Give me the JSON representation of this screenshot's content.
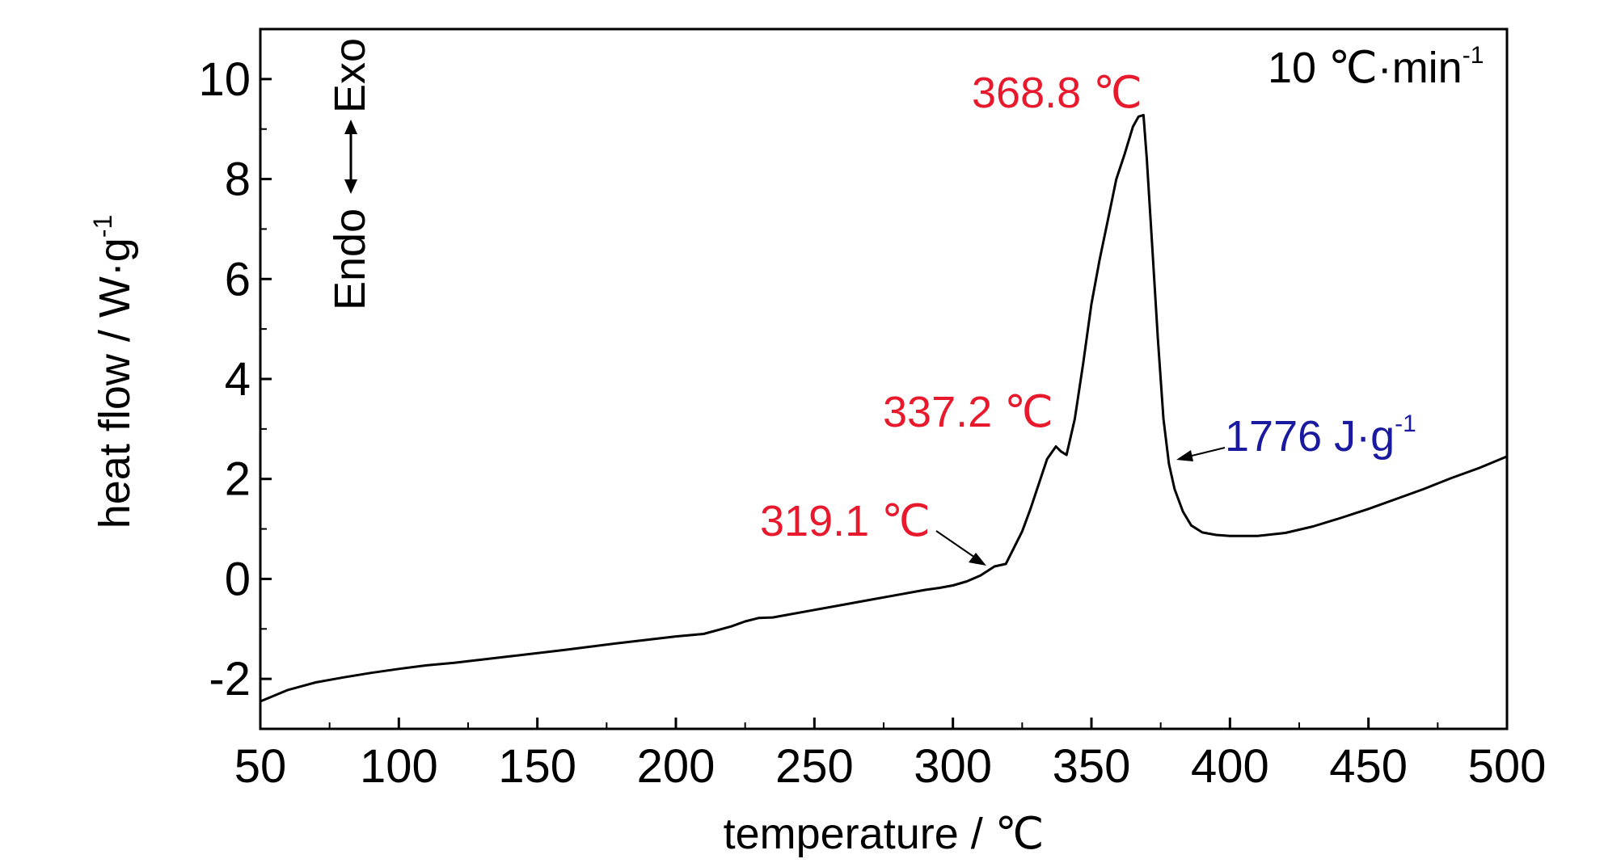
{
  "chart_data": {
    "type": "line",
    "xlabel": "temperature / ℃",
    "ylabel": "heat flow / W·g",
    "ylabel_sup": "-1",
    "xlim": [
      50,
      500
    ],
    "ylim": [
      -3,
      11
    ],
    "x_ticks": [
      50,
      100,
      150,
      200,
      250,
      300,
      350,
      400,
      450,
      500
    ],
    "y_ticks": [
      -2,
      0,
      2,
      4,
      6,
      8,
      10
    ],
    "grid": false,
    "series": [
      {
        "x": [
          50,
          60,
          70,
          80,
          90,
          100,
          110,
          120,
          140,
          160,
          180,
          200,
          210,
          220,
          225,
          230,
          235,
          240,
          250,
          260,
          270,
          280,
          290,
          295,
          300,
          305,
          310,
          315,
          319.1,
          322,
          325,
          328,
          331,
          334,
          337.2,
          339,
          341,
          344,
          347,
          350,
          353,
          356,
          359,
          362,
          365,
          367,
          368.8,
          370,
          372,
          374,
          376,
          378,
          380,
          383,
          386,
          390,
          395,
          400,
          410,
          420,
          430,
          440,
          450,
          460,
          470,
          480,
          490,
          500
        ],
        "y": [
          -2.45,
          -2.22,
          -2.07,
          -1.97,
          -1.88,
          -1.8,
          -1.73,
          -1.68,
          -1.55,
          -1.42,
          -1.28,
          -1.15,
          -1.1,
          -0.95,
          -0.85,
          -0.78,
          -0.77,
          -0.72,
          -0.62,
          -0.52,
          -0.42,
          -0.32,
          -0.22,
          -0.18,
          -0.13,
          -0.05,
          0.07,
          0.25,
          0.3,
          0.62,
          0.95,
          1.4,
          1.9,
          2.4,
          2.65,
          2.55,
          2.48,
          3.2,
          4.3,
          5.5,
          6.4,
          7.2,
          8.0,
          8.5,
          9.05,
          9.25,
          9.28,
          8.4,
          6.6,
          4.8,
          3.2,
          2.3,
          1.8,
          1.35,
          1.07,
          0.93,
          0.88,
          0.86,
          0.86,
          0.92,
          1.05,
          1.22,
          1.4,
          1.6,
          1.8,
          2.02,
          2.22,
          2.45
        ]
      }
    ],
    "annotations": [
      {
        "text": "10 ℃·min",
        "sup": "-1",
        "color": "#000000"
      },
      {
        "text": "Endo",
        "color": "#000000"
      },
      {
        "text": "Exo",
        "color": "#000000"
      },
      {
        "text": "368.8 ℃",
        "x": 368.8,
        "y": 9.28,
        "color": "#e8192c"
      },
      {
        "text": "337.2 ℃",
        "x": 337.2,
        "y": 2.65,
        "color": "#e8192c"
      },
      {
        "text": "319.1 ℃",
        "x": 319.1,
        "y": 0.3,
        "color": "#e8192c"
      },
      {
        "text": "1776 J·g",
        "sup": "-1",
        "x": 377,
        "y": 2.4,
        "color": "#1a1aa0"
      }
    ]
  }
}
